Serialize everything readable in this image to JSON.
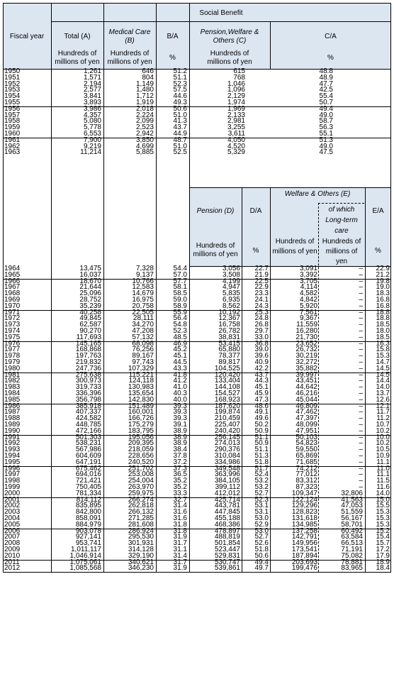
{
  "header": {
    "fiscal_year": "Fiscal year",
    "social_benefit": "Social Benefit",
    "total_a": "Total (A)",
    "medical_care_b": "Medical Care (B)",
    "b_over_a": "B/A",
    "pension_welfare_c": "Pension,Welfare & Others (C)",
    "c_over_a": "C/A",
    "unit_hundreds": "Hundreds of millions of yen",
    "unit_percent": "%",
    "pension_d": "Pension (D)",
    "d_over_a": "D/A",
    "welfare_e": "Welfare & Others (E)",
    "of_which_ltc": "of which Long-term care",
    "e_over_a": "E/A"
  },
  "table_top": {
    "columns": [
      "Fiscal year",
      "Total (A)",
      "Medical Care (B)",
      "B/A",
      "Pension,Welfare & Others (C)",
      "C/A"
    ],
    "rows": [
      [
        "1950",
        "1,261",
        "646",
        "51.2",
        "615",
        "48.8"
      ],
      [
        "1951",
        "1,571",
        "804",
        "51.1",
        "768",
        "48.9"
      ],
      [
        "1952",
        "2,194",
        "1,149",
        "52.3",
        "1,046",
        "47.7"
      ],
      [
        "1953",
        "2,577",
        "1,480",
        "57.5",
        "1,096",
        "42.5"
      ],
      [
        "1954",
        "3,841",
        "1,712",
        "44.6",
        "2,129",
        "55.4"
      ],
      [
        "1955",
        "3,893",
        "1,919",
        "49.3",
        "1,974",
        "50.7"
      ],
      [
        "1956",
        "3,986",
        "2,018",
        "50.6",
        "1,969",
        "49.4"
      ],
      [
        "1957",
        "4,357",
        "2,224",
        "51.0",
        "2,133",
        "49.0"
      ],
      [
        "1958",
        "5,080",
        "2,099",
        "41.3",
        "2,981",
        "58.7"
      ],
      [
        "1959",
        "5,778",
        "2,523",
        "43.7",
        "3,255",
        "56.3"
      ],
      [
        "1960",
        "6,553",
        "2,942",
        "44.9",
        "3,611",
        "55.1"
      ],
      [
        "1961",
        "7,900",
        "3,850",
        "48.7",
        "4,050",
        "51.3"
      ],
      [
        "1962",
        "9,219",
        "4,699",
        "51.0",
        "4,520",
        "49.0"
      ],
      [
        "1963",
        "11,214",
        "5,885",
        "52.5",
        "5,329",
        "47.5"
      ]
    ]
  },
  "table_bottom": {
    "columns": [
      "Fiscal year",
      "Total (A)",
      "Medical Care (B)",
      "B/A",
      "Pension (D)",
      "D/A",
      "Welfare & Others (E)",
      "of which Long-term care",
      "E/A"
    ],
    "rows": [
      [
        "1964",
        "13,475",
        "7,328",
        "54.4",
        "3,056",
        "22.7",
        "3,091",
        "–",
        "22.9"
      ],
      [
        "1965",
        "16,037",
        "9,137",
        "57.0",
        "3,508",
        "21.9",
        "3,392",
        "–",
        "21.2"
      ],
      [
        "1966",
        "18,670",
        "10,766",
        "57.7",
        "4,199",
        "22.5",
        "3,705",
        "–",
        "19.8"
      ],
      [
        "1967",
        "21,644",
        "12,583",
        "58.1",
        "4,947",
        "22.9",
        "4,114",
        "–",
        "19.0"
      ],
      [
        "1968",
        "25,096",
        "14,679",
        "58.5",
        "5,835",
        "23.3",
        "4,582",
        "–",
        "18.3"
      ],
      [
        "1969",
        "28,752",
        "16,975",
        "59.0",
        "6,935",
        "24.1",
        "4,842",
        "–",
        "16.8"
      ],
      [
        "1970",
        "35,239",
        "20,758",
        "58.9",
        "8,562",
        "24.3",
        "5,920",
        "–",
        "16.8"
      ],
      [
        "1971",
        "40,258",
        "22,505",
        "55.9",
        "10,192",
        "25.3",
        "7,561",
        "–",
        "18.8"
      ],
      [
        "1972",
        "49,845",
        "28,111",
        "56.4",
        "12,367",
        "24.8",
        "9,367",
        "–",
        "18.8"
      ],
      [
        "1973",
        "62,587",
        "34,270",
        "54.8",
        "16,758",
        "26.8",
        "11,559",
        "–",
        "18.5"
      ],
      [
        "1974",
        "90,270",
        "47,208",
        "52.3",
        "26,782",
        "29.7",
        "16,280",
        "–",
        "18.0"
      ],
      [
        "1975",
        "117,693",
        "57,132",
        "48.5",
        "38,831",
        "33.0",
        "21,730",
        "–",
        "18.5"
      ],
      [
        "1976",
        "145,165",
        "68,098",
        "46.9",
        "53,415",
        "36.8",
        "23,652",
        "–",
        "16.3"
      ],
      [
        "1977",
        "168,868",
        "76,256",
        "45.2",
        "65,880",
        "39.0",
        "26,732",
        "–",
        "15.8"
      ],
      [
        "1978",
        "197,763",
        "89,167",
        "45.1",
        "78,377",
        "39.6",
        "30,219",
        "–",
        "15.3"
      ],
      [
        "1979",
        "219,832",
        "97,743",
        "44.5",
        "89,817",
        "40.9",
        "32,272",
        "–",
        "14.7"
      ],
      [
        "1980",
        "247,736",
        "107,329",
        "43.3",
        "104,525",
        "42.2",
        "35,882",
        "–",
        "14.5"
      ],
      [
        "1981",
        "275,638",
        "115,221",
        "41.8",
        "120,420",
        "43.7",
        "39,997",
        "–",
        "14.5"
      ],
      [
        "1982",
        "300,973",
        "124,118",
        "41.2",
        "133,404",
        "44.3",
        "43,451",
        "–",
        "14.4"
      ],
      [
        "1983",
        "319,733",
        "130,983",
        "41.0",
        "144,108",
        "45.1",
        "44,642",
        "–",
        "14.0"
      ],
      [
        "1984",
        "336,396",
        "135,654",
        "40.3",
        "154,527",
        "45.9",
        "46,216",
        "–",
        "13.7"
      ],
      [
        "1985",
        "356,798",
        "142,830",
        "40.0",
        "168,923",
        "47.3",
        "45,044",
        "–",
        "12.6"
      ],
      [
        "1986",
        "385,918",
        "151,489",
        "39.3",
        "187,620",
        "48.6",
        "46,809",
        "–",
        "12.1"
      ],
      [
        "1987",
        "407,337",
        "160,001",
        "39.3",
        "199,874",
        "49.1",
        "47,462",
        "–",
        "11.7"
      ],
      [
        "1988",
        "424,582",
        "166,726",
        "39.3",
        "210,459",
        "49.6",
        "47,397",
        "–",
        "11.2"
      ],
      [
        "1989",
        "448,785",
        "175,279",
        "39.1",
        "225,407",
        "50.2",
        "48,099",
        "–",
        "10.7"
      ],
      [
        "1990",
        "472,166",
        "183,795",
        "38.9",
        "240,420",
        "50.9",
        "47,951",
        "–",
        "10.2"
      ],
      [
        "1991",
        "501,303",
        "195,056",
        "38.9",
        "256,145",
        "51.1",
        "50,103",
        "–",
        "10.0"
      ],
      [
        "1992",
        "538,231",
        "209,395",
        "38.9",
        "274,013",
        "50.9",
        "54,823",
        "–",
        "10.2"
      ],
      [
        "1993",
        "567,986",
        "218,059",
        "38.4",
        "290,376",
        "51.1",
        "59,550",
        "–",
        "10.5"
      ],
      [
        "1994",
        "604,609",
        "228,656",
        "37.8",
        "310,084",
        "51.3",
        "65,869",
        "–",
        "10.9"
      ],
      [
        "1995",
        "647,191",
        "240,520",
        "37.2",
        "334,986",
        "51.8",
        "71,685",
        "–",
        "11.1"
      ],
      [
        "1996",
        "675,462",
        "251,702",
        "37.3",
        "349,548",
        "51.7",
        "74,212",
        "–",
        "11.0"
      ],
      [
        "1997",
        "694,016",
        "253,008",
        "36.5",
        "363,996",
        "52.4",
        "77,012",
        "–",
        "11.1"
      ],
      [
        "1998",
        "721,421",
        "254,004",
        "35.2",
        "384,105",
        "53.2",
        "83,312",
        "–",
        "11.5"
      ],
      [
        "1999",
        "750,405",
        "263,970",
        "35.2",
        "399,112",
        "53.2",
        "87,323",
        "–",
        "11.6"
      ],
      [
        "2000",
        "781,334",
        "259,975",
        "33.3",
        "412,012",
        "52.7",
        "109,347",
        "32,806",
        "14.0"
      ],
      [
        "2001",
        "814,112",
        "266,274",
        "32.7",
        "425,714",
        "52.3",
        "122,124",
        "41,563",
        "15.0"
      ],
      [
        "2002",
        "835,895",
        "262,818",
        "31.4",
        "443,781",
        "53.1",
        "129,296",
        "47,053",
        "15.5"
      ],
      [
        "2003",
        "842,800",
        "266,132",
        "31.6",
        "447,845",
        "53.1",
        "128,823",
        "51,559",
        "15.3"
      ],
      [
        "2004",
        "858,091",
        "271,285",
        "31.6",
        "455,188",
        "53.0",
        "131,618",
        "56,167",
        "15.3"
      ],
      [
        "2005",
        "884,979",
        "281,608",
        "31.8",
        "468,386",
        "52.9",
        "134,985",
        "58,701",
        "15.3"
      ],
      [
        "2006",
        "903,078",
        "286,924",
        "31.8",
        "478,897",
        "53.0",
        "137,258",
        "60,492",
        "15.2"
      ],
      [
        "2007",
        "927,141",
        "295,530",
        "31.9",
        "488,819",
        "52.7",
        "142,791",
        "63,584",
        "15.4"
      ],
      [
        "2008",
        "953,741",
        "301,931",
        "31.7",
        "501,854",
        "52.6",
        "149,956",
        "66,513",
        "15.7"
      ],
      [
        "2009",
        "1,011,117",
        "314,128",
        "31.1",
        "523,447",
        "51.8",
        "173,541",
        "71,191",
        "17.2"
      ],
      [
        "2010",
        "1,046,914",
        "329,190",
        "31.4",
        "529,831",
        "50.6",
        "187,894",
        "75,082",
        "17.9"
      ],
      [
        "2011",
        "1,075,061",
        "340,621",
        "31.7",
        "530,747",
        "49.4",
        "203,693",
        "78,881",
        "18.9"
      ],
      [
        "2012",
        "1,085,568",
        "346,230",
        "31.9",
        "539,861",
        "49.7",
        "199,476",
        "83,965",
        "18.4"
      ]
    ]
  }
}
